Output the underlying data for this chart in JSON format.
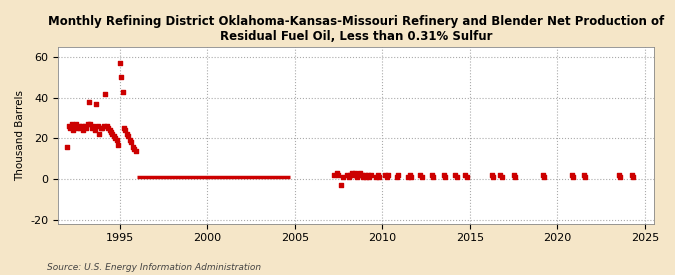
{
  "title": "Monthly Refining District Oklahoma-Kansas-Missouri Refinery and Blender Net Production of\nResidual Fuel Oil, Less than 0.31% Sulfur",
  "ylabel": "Thousand Barrels",
  "source": "Source: U.S. Energy Information Administration",
  "fig_background_color": "#f5e6c8",
  "plot_background_color": "#ffffff",
  "line_color": "#cc0000",
  "marker_color": "#cc0000",
  "xlim": [
    1991.5,
    2025.5
  ],
  "ylim": [
    -22,
    65
  ],
  "yticks": [
    -20,
    0,
    20,
    40,
    60
  ],
  "xticks": [
    1995,
    2000,
    2005,
    2010,
    2015,
    2020,
    2025
  ],
  "early_scatter_x": [
    1992.0,
    1992.08,
    1992.17,
    1992.25,
    1992.33,
    1992.42,
    1992.5,
    1992.58,
    1992.67,
    1992.75,
    1992.83,
    1992.92,
    1993.0,
    1993.08,
    1993.17,
    1993.25,
    1993.33,
    1993.42,
    1993.5,
    1993.58,
    1993.67,
    1993.75,
    1993.83,
    1993.92,
    1994.0,
    1994.08,
    1994.17,
    1994.25,
    1994.33,
    1994.42,
    1994.5,
    1994.58,
    1994.67,
    1994.75,
    1994.83,
    1994.92,
    1995.0,
    1995.08,
    1995.17,
    1995.25,
    1995.33,
    1995.42,
    1995.5,
    1995.58,
    1995.67,
    1995.75,
    1995.83,
    1995.92
  ],
  "early_scatter_y": [
    16,
    26,
    25,
    27,
    24,
    26,
    27,
    25,
    26,
    25,
    26,
    24,
    26,
    25,
    27,
    38,
    27,
    25,
    26,
    24,
    37,
    26,
    22,
    25,
    25,
    26,
    42,
    26,
    25,
    24,
    23,
    22,
    21,
    20,
    19,
    17,
    57,
    50,
    43,
    25,
    24,
    22,
    21,
    19,
    18,
    16,
    15,
    14
  ],
  "solid_line_x": [
    1996.0,
    2004.75
  ],
  "solid_line_y": [
    1,
    1
  ],
  "late_scatter_x": [
    2007.25,
    2007.42,
    2007.5,
    2007.67,
    2007.75,
    2008.0,
    2008.08,
    2008.17,
    2008.25,
    2008.33,
    2008.42,
    2008.5,
    2008.58,
    2008.67,
    2008.75,
    2008.83,
    2008.92,
    2009.0,
    2009.08,
    2009.17,
    2009.25,
    2009.33,
    2009.67,
    2009.75,
    2009.83,
    2010.17,
    2010.25,
    2010.33,
    2010.83,
    2010.92,
    2011.5,
    2011.58,
    2011.67,
    2012.17,
    2012.25,
    2012.83,
    2012.92,
    2013.5,
    2013.58,
    2014.17,
    2014.25,
    2014.75,
    2014.83,
    2016.25,
    2016.33,
    2016.75,
    2016.83,
    2017.5,
    2017.58,
    2019.17,
    2019.25,
    2020.83,
    2020.92,
    2021.5,
    2021.58,
    2023.5,
    2023.58,
    2024.25,
    2024.33
  ],
  "late_scatter_y": [
    2,
    3,
    2,
    -3,
    1,
    2,
    1,
    2,
    3,
    2,
    3,
    2,
    1,
    2,
    3,
    2,
    1,
    2,
    1,
    2,
    1,
    2,
    1,
    2,
    1,
    2,
    1,
    2,
    1,
    2,
    1,
    2,
    1,
    2,
    1,
    2,
    1,
    2,
    1,
    2,
    1,
    2,
    1,
    2,
    1,
    2,
    1,
    2,
    1,
    2,
    1,
    2,
    1,
    2,
    1,
    2,
    1,
    2,
    1
  ]
}
